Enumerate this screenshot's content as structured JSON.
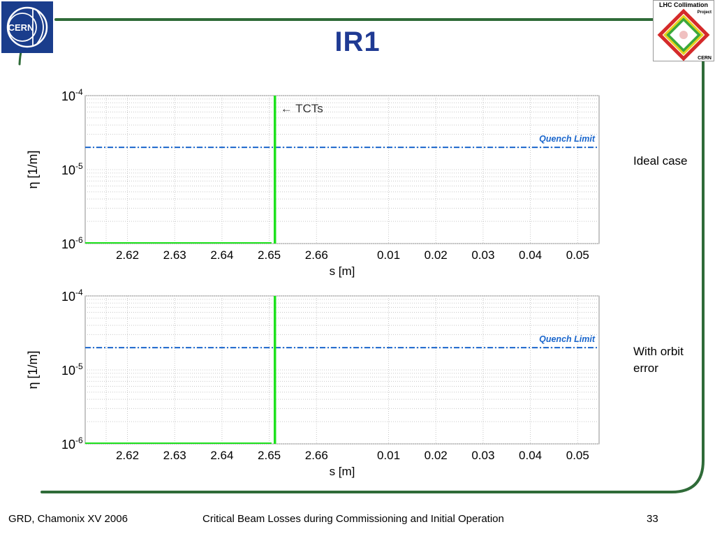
{
  "slide": {
    "title": "IR1",
    "side_labels": [
      "Ideal case",
      "With orbit error"
    ],
    "footer": {
      "left": "GRD, Chamonix XV 2006",
      "center": "Critical Beam Losses during Commissioning and Initial Operation",
      "page": "33"
    },
    "logos": {
      "cern": "CERN",
      "lhc_title": "LHC Collimation",
      "lhc_sub": "Project",
      "lhc_bottom": "CERN"
    }
  },
  "colors": {
    "frame": "#2f6b38",
    "title": "#1f3a93",
    "cern_logo_bg": "#1a3d8c",
    "loss_line": "#1ee21e",
    "quench_line": "#1a66cc",
    "quench_text": "#1a66cc"
  },
  "chart_data": [
    {
      "type": "line",
      "title": "",
      "xlabel": "s [m]",
      "ylabel": "η [1/m]",
      "yscale": "log",
      "ylim": [
        1e-06,
        0.0001
      ],
      "y_ticks": [
        "10^-6",
        "10^-5",
        "10^-4"
      ],
      "x_ticks": [
        "2.62",
        "2.63",
        "2.64",
        "2.65",
        "2.66",
        "0.01",
        "0.02",
        "0.03",
        "0.04",
        "0.05"
      ],
      "grid": true,
      "quench_limit": {
        "label": "Quench Limit",
        "value": 2e-05
      },
      "annotation": "← TCTs",
      "loss_spike": {
        "x": "2.6512",
        "value": 0.0001
      },
      "baseline_segment": {
        "x_range": [
          "2.6115",
          "2.6505"
        ],
        "value": 1e-06
      }
    },
    {
      "type": "line",
      "title": "",
      "xlabel": "s [m]",
      "ylabel": "η [1/m]",
      "yscale": "log",
      "ylim": [
        1e-06,
        0.0001
      ],
      "y_ticks": [
        "10^-6",
        "10^-5",
        "10^-4"
      ],
      "x_ticks": [
        "2.62",
        "2.63",
        "2.64",
        "2.65",
        "2.66",
        "0.01",
        "0.02",
        "0.03",
        "0.04",
        "0.05"
      ],
      "grid": true,
      "quench_limit": {
        "label": "Quench Limit",
        "value": 2e-05
      },
      "annotation": "",
      "loss_spike": {
        "x": "2.6512",
        "value": 0.0001
      },
      "baseline_segment": {
        "x_range": [
          "2.6115",
          "2.6505"
        ],
        "value": 1e-06
      }
    }
  ]
}
